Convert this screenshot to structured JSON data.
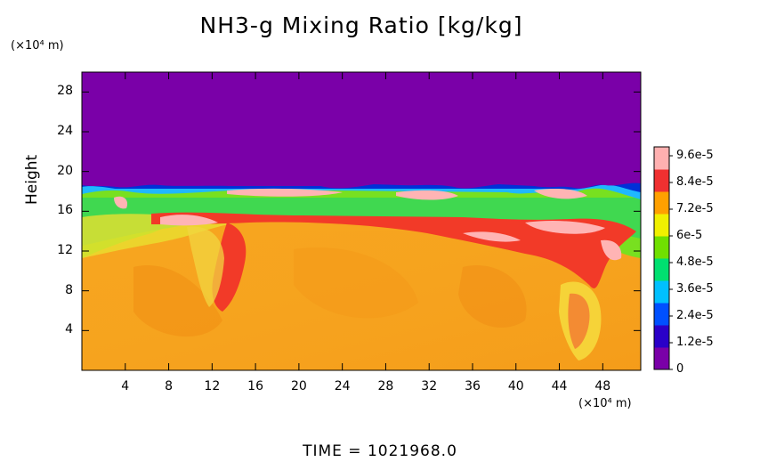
{
  "chart_data": {
    "type": "heatmap",
    "title": "NH3-g Mixing Ratio [kg/kg]",
    "xlabel": "",
    "xunit": "(×10⁴ m)",
    "ylabel": "Height",
    "yunit": "(×10⁴ m)",
    "xlim": [
      0,
      51.5
    ],
    "ylim": [
      0,
      30
    ],
    "xticks": [
      4,
      8,
      12,
      16,
      20,
      24,
      28,
      32,
      36,
      40,
      44,
      48
    ],
    "yticks": [
      4,
      8,
      12,
      16,
      20,
      24,
      28
    ],
    "colorbar": {
      "range": [
        0,
        0.0001
      ],
      "tick_values": [
        0,
        1.2e-05,
        2.4e-05,
        3.6e-05,
        4.8e-05,
        6e-05,
        7.2e-05,
        8.4e-05,
        9.6e-05
      ],
      "labels": [
        "0",
        "1.2e-5",
        "2.4e-5",
        "3.6e-5",
        "4.8e-5",
        "6e-5",
        "7.2e-5",
        "8.4e-5",
        "9.6e-5"
      ],
      "colors": [
        "#7a00a8",
        "#2a00c8",
        "#0050ff",
        "#00c0ff",
        "#00e070",
        "#70e000",
        "#f0f000",
        "#ffa000",
        "#f03030",
        "#ffb0b0"
      ]
    },
    "field_summary": {
      "upper_layer_value": 0,
      "upper_layer_bottom_height": 18.5,
      "bulk_value": 8e-05,
      "peak_value": 9.8e-05
    }
  },
  "footer": {
    "time_text": "TIME = 1021968.0"
  }
}
